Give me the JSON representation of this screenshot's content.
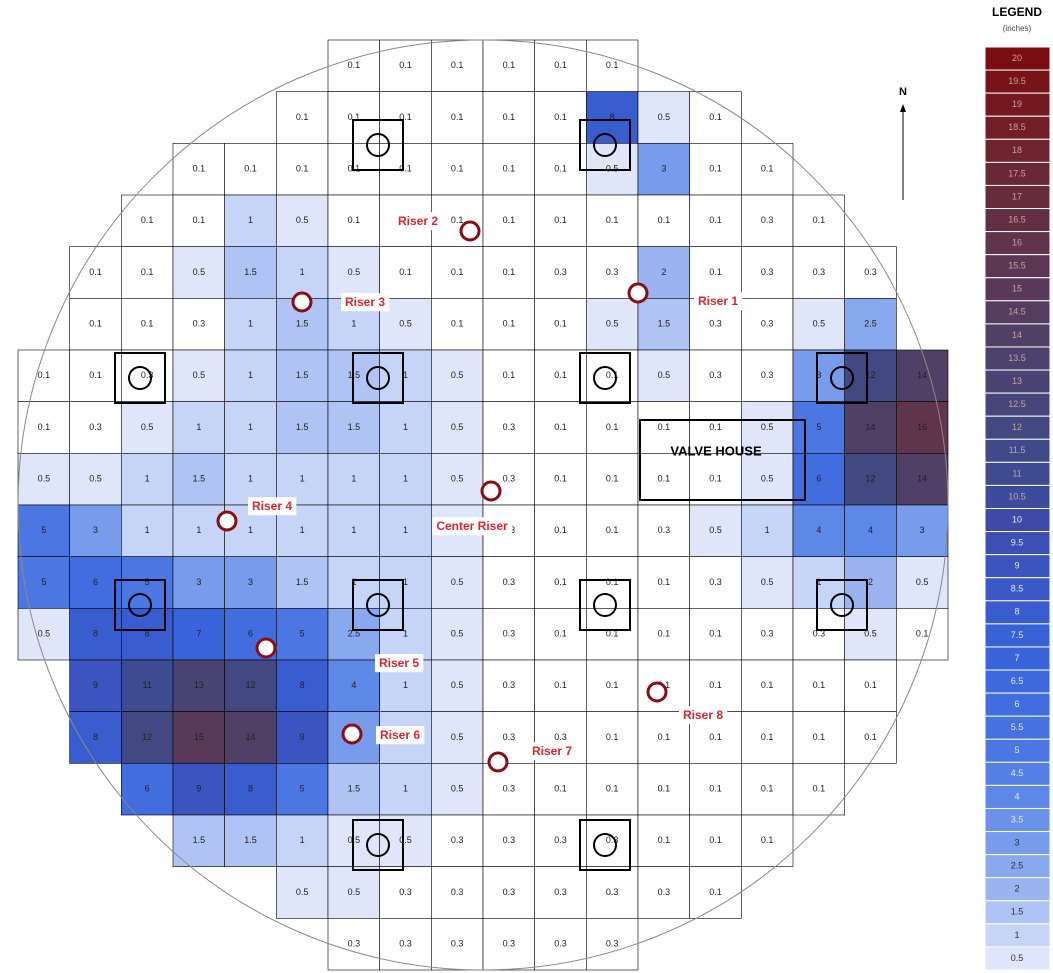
{
  "legend": {
    "title": "LEGEND",
    "unit": "(inches)",
    "values": [
      20,
      19.5,
      19,
      18.5,
      18,
      17.5,
      17,
      16.5,
      16,
      15.5,
      15,
      14.5,
      14,
      13.5,
      13,
      12.5,
      12,
      11.5,
      11,
      10.5,
      10,
      9.5,
      9,
      8.5,
      8,
      7.5,
      7,
      6.5,
      6,
      5.5,
      5,
      4.5,
      4,
      3.5,
      3,
      2.5,
      2,
      1.5,
      1,
      0.5
    ],
    "colors": [
      "#7a0d12",
      "#771319",
      "#741920",
      "#711e27",
      "#6e232e",
      "#6a2835",
      "#672c3c",
      "#633043",
      "#60344a",
      "#5c3751",
      "#583a58",
      "#553d5f",
      "#514066",
      "#4d426d",
      "#4a4474",
      "#46467b",
      "#434882",
      "#404a89",
      "#3e4b91",
      "#3d4b9c",
      "#3d4aa8",
      "#3c4fb5",
      "#3b54bf",
      "#3a58c7",
      "#395dcf",
      "#3861d5",
      "#3a65da",
      "#3d69dd",
      "#416ddf",
      "#4672e1",
      "#4c77e3",
      "#5480e5",
      "#5e88e7",
      "#6a92ea",
      "#789cec",
      "#88a8ef",
      "#9ab4f1",
      "#afc3f4",
      "#c6d4f7",
      "#e0e6fa"
    ]
  },
  "north": "N",
  "valve_house": "VALVE HOUSE",
  "risers": [
    "Riser 1",
    "Riser 2",
    "Riser 3",
    "Riser 4",
    "Center Riser",
    "Riser 5",
    "Riser 6",
    "Riser 7",
    "Riser 8"
  ],
  "grid": {
    "rows": [
      [
        null,
        null,
        null,
        null,
        null,
        null,
        0.1,
        0.1,
        0.1,
        0.1,
        0.1,
        0.1,
        null,
        null,
        null,
        null,
        null,
        null
      ],
      [
        null,
        null,
        null,
        null,
        null,
        0.1,
        0.1,
        0.1,
        0.1,
        0.1,
        0.1,
        8,
        0.5,
        0.1,
        null,
        null,
        null,
        null
      ],
      [
        null,
        null,
        null,
        0.1,
        0.1,
        0.1,
        0.1,
        0.1,
        0.1,
        0.1,
        0.1,
        0.5,
        3,
        0.1,
        0.1,
        null,
        null,
        null
      ],
      [
        null,
        null,
        0.1,
        0.1,
        1,
        0.5,
        0.1,
        0.1,
        0.1,
        0.1,
        0.1,
        0.1,
        0.1,
        0.1,
        0.3,
        0.1,
        null,
        null
      ],
      [
        null,
        0.1,
        0.1,
        0.5,
        1.5,
        1,
        0.5,
        0.1,
        0.1,
        0.1,
        0.3,
        0.3,
        2,
        0.1,
        0.3,
        0.3,
        0.3,
        null
      ],
      [
        null,
        0.1,
        0.1,
        0.3,
        1,
        1.5,
        1,
        0.5,
        0.1,
        0.1,
        0.1,
        0.5,
        1.5,
        0.3,
        0.3,
        0.5,
        2.5,
        null
      ],
      [
        0.1,
        0.1,
        0.3,
        0.5,
        1,
        1.5,
        1.5,
        1,
        0.5,
        0.1,
        0.1,
        0.1,
        0.5,
        0.3,
        0.3,
        3,
        12,
        14
      ],
      [
        0.1,
        0.3,
        0.5,
        1,
        1,
        1.5,
        1.5,
        1,
        0.5,
        0.3,
        0.1,
        0.1,
        0.1,
        0.1,
        0.5,
        5,
        14,
        16
      ],
      [
        0.5,
        0.5,
        1,
        1.5,
        1,
        1,
        1,
        1,
        0.5,
        0.3,
        0.1,
        0.1,
        0.1,
        0.1,
        0.5,
        6,
        12,
        14
      ],
      [
        5,
        3,
        1,
        1,
        1,
        1,
        1,
        1,
        0.5,
        0.3,
        0.1,
        0.1,
        0.3,
        0.5,
        1,
        4,
        4,
        3
      ],
      [
        5,
        6,
        5,
        3,
        3,
        1.5,
        1,
        1,
        0.5,
        0.3,
        0.1,
        0.1,
        0.1,
        0.3,
        0.5,
        1,
        2,
        0.5
      ],
      [
        0.5,
        8,
        8,
        7,
        6,
        5,
        2.5,
        1,
        0.5,
        0.3,
        0.1,
        0.1,
        0.1,
        0.1,
        0.3,
        0.3,
        0.5,
        0.1
      ],
      [
        null,
        9,
        11,
        13,
        12,
        8,
        4,
        1,
        0.5,
        0.3,
        0.1,
        0.1,
        0.1,
        0.1,
        0.1,
        0.1,
        0.1,
        null
      ],
      [
        null,
        8,
        12,
        15,
        14,
        9,
        3,
        1,
        0.5,
        0.3,
        0.3,
        0.1,
        0.1,
        0.1,
        0.1,
        0.1,
        0.1,
        null
      ],
      [
        null,
        null,
        6,
        9,
        8,
        5,
        1.5,
        1,
        0.5,
        0.3,
        0.1,
        0.1,
        0.1,
        0.1,
        0.1,
        0.1,
        null,
        null
      ],
      [
        null,
        null,
        null,
        1.5,
        1.5,
        1,
        0.5,
        0.5,
        0.3,
        0.3,
        0.3,
        0.3,
        0.1,
        0.1,
        0.1,
        null,
        null,
        null
      ],
      [
        null,
        null,
        null,
        null,
        null,
        0.5,
        0.5,
        0.3,
        0.3,
        0.3,
        0.3,
        0.3,
        0.3,
        0.1,
        null,
        null,
        null,
        null
      ],
      [
        null,
        null,
        null,
        null,
        null,
        null,
        0.3,
        0.3,
        0.3,
        0.3,
        0.3,
        0.3,
        null,
        null,
        null,
        null,
        null,
        null
      ]
    ]
  }
}
